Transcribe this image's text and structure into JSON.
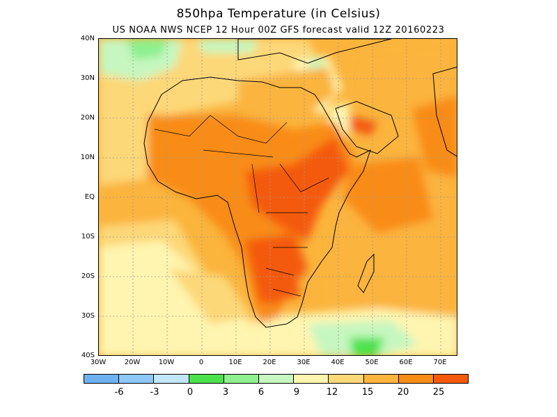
{
  "title": "850hpa  Temperature (in Celsius)",
  "subtitle": "US NOAA NWS NCEP 12 Hour 00Z GFS forecast valid 12Z 20160223",
  "latitude_labels": [
    "40N",
    "30N",
    "20N",
    "10N",
    "EQ",
    "10S",
    "20S",
    "30S",
    "40S"
  ],
  "longitude_labels": [
    "30W",
    "20W",
    "10W",
    "0",
    "10E",
    "20E",
    "30E",
    "40E",
    "50E",
    "60E",
    "70E"
  ],
  "legend": {
    "labels": [
      "-6",
      "-3",
      "0",
      "3",
      "6",
      "9",
      "12",
      "15",
      "20",
      "25"
    ],
    "colors": [
      "#6eb1f0",
      "#8dc8f7",
      "#c2e7fb",
      "#4ce24c",
      "#8ef08e",
      "#c6f7c0",
      "#fff5b0",
      "#fdd878",
      "#fbb43c",
      "#f98c14",
      "#f45a0a"
    ]
  },
  "map_colors": {
    "land_border": "#000000",
    "grid": "#9a9a9a"
  }
}
